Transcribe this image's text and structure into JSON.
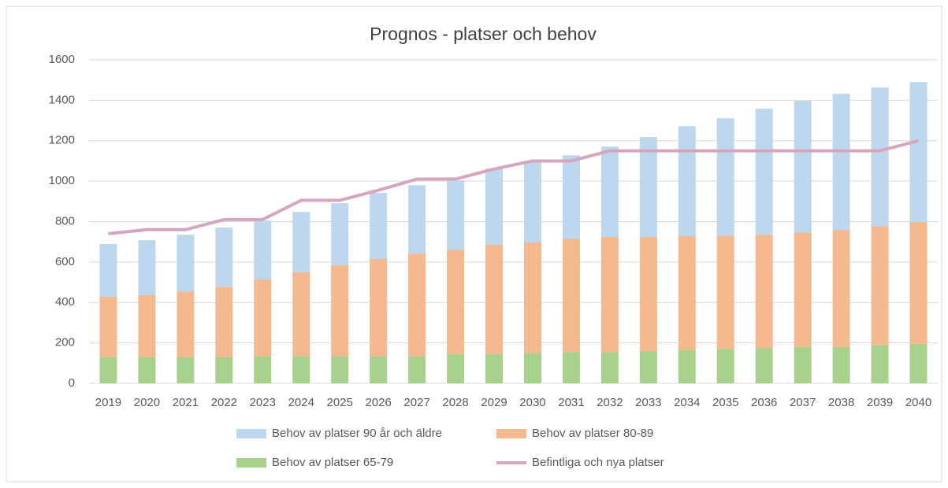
{
  "chart_data": {
    "type": "stacked-bar-line",
    "title": "Prognos - platser och behov",
    "categories": [
      "2019",
      "2020",
      "2021",
      "2022",
      "2023",
      "2024",
      "2025",
      "2026",
      "2027",
      "2028",
      "2029",
      "2030",
      "2031",
      "2032",
      "2033",
      "2034",
      "2035",
      "2036",
      "2037",
      "2038",
      "2039",
      "2040"
    ],
    "series": [
      {
        "name": "Behov av platser 90 år och äldre",
        "type": "bar",
        "color": "#bdd7ee",
        "values": [
          261,
          272,
          280,
          292,
          291,
          299,
          307,
          327,
          338,
          343,
          377,
          400,
          412,
          447,
          494,
          544,
          580,
          623,
          650,
          673,
          685,
          692
        ]
      },
      {
        "name": "Behov av platser 80-89",
        "type": "bar",
        "color": "#f4b98f",
        "values": [
          298,
          306,
          325,
          348,
          379,
          414,
          449,
          480,
          507,
          516,
          540,
          547,
          561,
          569,
          564,
          563,
          561,
          560,
          567,
          579,
          588,
          603
        ]
      },
      {
        "name": "Behov av platser 65-79",
        "type": "bar",
        "color": "#a9d18e",
        "values": [
          130,
          130,
          130,
          130,
          135,
          135,
          135,
          135,
          135,
          145,
          145,
          150,
          155,
          155,
          160,
          165,
          170,
          175,
          180,
          180,
          190,
          195
        ]
      },
      {
        "name": "Befintliga och nya platser",
        "type": "line",
        "color": "#d5a6bd",
        "values": [
          740,
          760,
          760,
          810,
          810,
          905,
          905,
          955,
          1010,
          1010,
          1060,
          1100,
          1100,
          1150,
          1150,
          1150,
          1150,
          1150,
          1150,
          1150,
          1150,
          1200
        ]
      }
    ],
    "ylim": [
      0,
      1600
    ],
    "yticks": [
      0,
      200,
      400,
      600,
      800,
      1000,
      1200,
      1400,
      1600
    ],
    "grid": true
  }
}
